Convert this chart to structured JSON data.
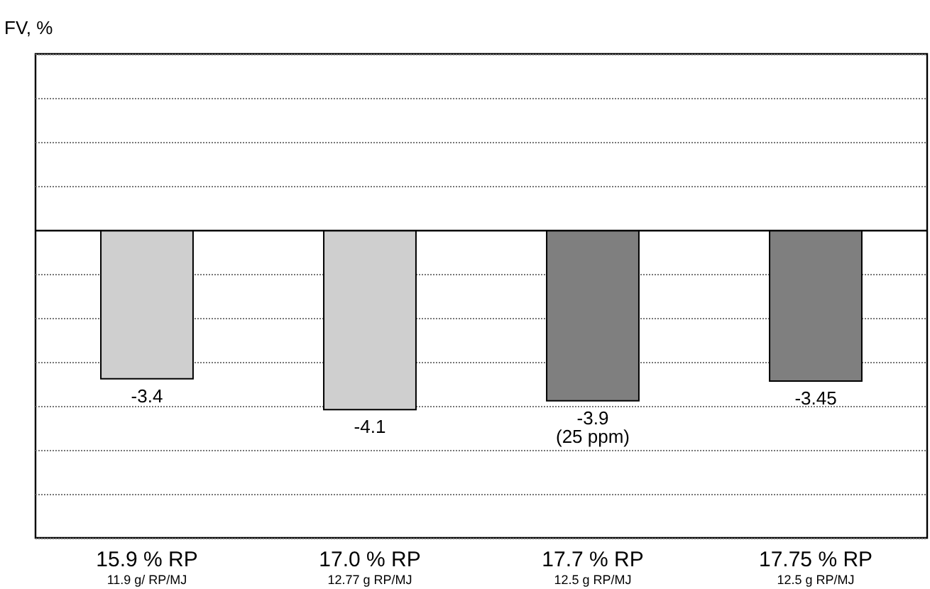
{
  "chart_data": {
    "type": "bar",
    "ylabel": "FV, %",
    "categories": [
      "15.9 % RP\n11.9 g/ RP/MJ",
      "17.0 % RP\n12.77 g RP/MJ",
      "17.7 % RP\n12.5 g RP/MJ",
      "17.75 % RP\n12.5 g RP/MJ"
    ],
    "series": [
      {
        "color": "#cfcfcf",
        "values": [
          -3.4,
          -4.1,
          null,
          null
        ],
        "value_labels": [
          "-3.4",
          "-4.1",
          null,
          null
        ]
      },
      {
        "color": "#7f7f7f",
        "values": [
          null,
          null,
          -3.9,
          -3.45
        ],
        "value_labels": [
          null,
          null,
          "-3.9\n(25 ppm)",
          "-3.45"
        ]
      }
    ],
    "stacked": true,
    "ylim": [
      -7,
      4
    ],
    "tick_labels": "x",
    "grid": "y",
    "line_style": "dotted"
  }
}
